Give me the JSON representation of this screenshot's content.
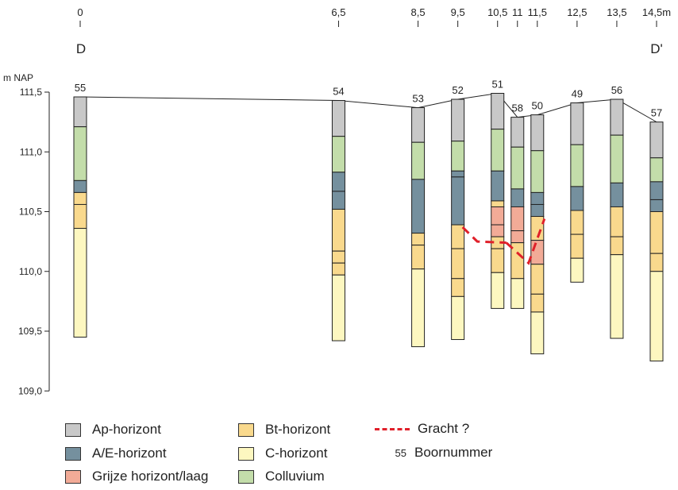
{
  "section": {
    "start_label": "D",
    "end_label": "D'",
    "y_axis_unit": "m NAP",
    "distance_ticks": [
      {
        "value": 0,
        "label": "0"
      },
      {
        "value": 6.5,
        "label": "6,5"
      },
      {
        "value": 8.5,
        "label": "8,5"
      },
      {
        "value": 9.5,
        "label": "9,5"
      },
      {
        "value": 10.5,
        "label": "10,5"
      },
      {
        "value": 11,
        "label": "11"
      },
      {
        "value": 11.5,
        "label": "11,5"
      },
      {
        "value": 12.5,
        "label": "12,5"
      },
      {
        "value": 13.5,
        "label": "13,5"
      },
      {
        "value": 14.5,
        "label": "14,5m"
      }
    ],
    "elevation_ticks": [
      {
        "value": 111.5,
        "label": "111,5"
      },
      {
        "value": 111.0,
        "label": "111,0"
      },
      {
        "value": 110.5,
        "label": "110,5"
      },
      {
        "value": 110.0,
        "label": "110,0"
      },
      {
        "value": 109.5,
        "label": "109,5"
      },
      {
        "value": 109.0,
        "label": "109,0"
      }
    ]
  },
  "colors": {
    "Ap": "#c8c8c8",
    "AE": "#75909e",
    "grijs": "#f2ab97",
    "Bt": "#f9d98d",
    "C": "#fdf7c0",
    "colluvium": "#c3ddaa",
    "gracht": "#e0202a"
  },
  "borings": [
    {
      "label": "55",
      "x": 0,
      "top": 111.46,
      "bottom": 109.45,
      "layers": [
        {
          "t": "Ap",
          "b": 111.21
        },
        {
          "t": "colluvium",
          "b": 110.76
        },
        {
          "t": "AE",
          "b": 110.66
        },
        {
          "t": "Bt",
          "b": 110.56
        },
        {
          "t": "Bt",
          "b": 110.36
        },
        {
          "t": "C",
          "b": 109.45
        }
      ]
    },
    {
      "label": "54",
      "x": 6.5,
      "top": 111.43,
      "bottom": 109.42,
      "layers": [
        {
          "t": "Ap",
          "b": 111.13
        },
        {
          "t": "colluvium",
          "b": 110.83
        },
        {
          "t": "AE",
          "b": 110.67
        },
        {
          "t": "AE",
          "b": 110.52
        },
        {
          "t": "Bt",
          "b": 110.17
        },
        {
          "t": "Bt",
          "b": 110.07
        },
        {
          "t": "Bt",
          "b": 109.97
        },
        {
          "t": "C",
          "b": 109.42
        }
      ]
    },
    {
      "label": "53",
      "x": 8.5,
      "top": 111.37,
      "bottom": 109.37,
      "layers": [
        {
          "t": "Ap",
          "b": 111.08
        },
        {
          "t": "colluvium",
          "b": 110.77
        },
        {
          "t": "AE",
          "b": 110.32
        },
        {
          "t": "Bt",
          "b": 110.22
        },
        {
          "t": "Bt",
          "b": 110.02
        },
        {
          "t": "C",
          "b": 109.37
        }
      ]
    },
    {
      "label": "52",
      "x": 9.5,
      "top": 111.44,
      "bottom": 109.43,
      "layers": [
        {
          "t": "Ap",
          "b": 111.09
        },
        {
          "t": "colluvium",
          "b": 110.84
        },
        {
          "t": "AE",
          "b": 110.79
        },
        {
          "t": "AE",
          "b": 110.39
        },
        {
          "t": "Bt",
          "b": 110.19
        },
        {
          "t": "Bt",
          "b": 109.94
        },
        {
          "t": "Bt",
          "b": 109.79
        },
        {
          "t": "C",
          "b": 109.43
        }
      ]
    },
    {
      "label": "51",
      "x": 10.5,
      "top": 111.49,
      "bottom": 109.69,
      "layers": [
        {
          "t": "Ap",
          "b": 111.19
        },
        {
          "t": "colluvium",
          "b": 110.84
        },
        {
          "t": "AE",
          "b": 110.59
        },
        {
          "t": "Bt",
          "b": 110.54
        },
        {
          "t": "grijs",
          "b": 110.39
        },
        {
          "t": "grijs",
          "b": 110.29
        },
        {
          "t": "Bt",
          "b": 110.19
        },
        {
          "t": "Bt",
          "b": 109.99
        },
        {
          "t": "C",
          "b": 109.69
        }
      ]
    },
    {
      "label": "58",
      "x": 11,
      "top": 111.29,
      "bottom": 109.69,
      "layers": [
        {
          "t": "Ap",
          "b": 111.04
        },
        {
          "t": "colluvium",
          "b": 110.69
        },
        {
          "t": "AE",
          "b": 110.54
        },
        {
          "t": "grijs",
          "b": 110.34
        },
        {
          "t": "grijs",
          "b": 110.24
        },
        {
          "t": "Bt",
          "b": 109.94
        },
        {
          "t": "C",
          "b": 109.69
        }
      ]
    },
    {
      "label": "50",
      "x": 11.5,
      "top": 111.31,
      "bottom": 109.31,
      "layers": [
        {
          "t": "Ap",
          "b": 111.01
        },
        {
          "t": "colluvium",
          "b": 110.66
        },
        {
          "t": "AE",
          "b": 110.56
        },
        {
          "t": "AE",
          "b": 110.46
        },
        {
          "t": "Bt",
          "b": 110.26
        },
        {
          "t": "grijs",
          "b": 110.06
        },
        {
          "t": "Bt",
          "b": 109.81
        },
        {
          "t": "Bt",
          "b": 109.66
        },
        {
          "t": "C",
          "b": 109.31
        }
      ]
    },
    {
      "label": "49",
      "x": 12.5,
      "top": 111.41,
      "bottom": 109.91,
      "layers": [
        {
          "t": "Ap",
          "b": 111.06
        },
        {
          "t": "colluvium",
          "b": 110.71
        },
        {
          "t": "AE",
          "b": 110.51
        },
        {
          "t": "Bt",
          "b": 110.31
        },
        {
          "t": "Bt",
          "b": 110.11
        },
        {
          "t": "C",
          "b": 109.91
        }
      ]
    },
    {
      "label": "56",
      "x": 13.5,
      "top": 111.44,
      "bottom": 109.44,
      "layers": [
        {
          "t": "Ap",
          "b": 111.14
        },
        {
          "t": "colluvium",
          "b": 110.74
        },
        {
          "t": "AE",
          "b": 110.54
        },
        {
          "t": "Bt",
          "b": 110.29
        },
        {
          "t": "Bt",
          "b": 110.14
        },
        {
          "t": "C",
          "b": 109.44
        }
      ]
    },
    {
      "label": "57",
      "x": 14.5,
      "top": 111.25,
      "bottom": 109.25,
      "layers": [
        {
          "t": "Ap",
          "b": 110.95
        },
        {
          "t": "colluvium",
          "b": 110.75
        },
        {
          "t": "AE",
          "b": 110.6
        },
        {
          "t": "AE",
          "b": 110.5
        },
        {
          "t": "Bt",
          "b": 110.15
        },
        {
          "t": "Bt",
          "b": 110.0
        },
        {
          "t": "C",
          "b": 109.25
        }
      ]
    }
  ],
  "gracht_line": [
    [
      9.62,
      110.37
    ],
    [
      9.99,
      110.25
    ],
    [
      10.72,
      110.24
    ],
    [
      11.28,
      110.07
    ],
    [
      11.68,
      110.44
    ]
  ],
  "legend": {
    "ap": "Ap-horizont",
    "ae": "A/E-horizont",
    "grijs": "Grijze horizont/laag",
    "bt": "Bt-horizont",
    "c": "C-horizont",
    "colluvium": "Colluvium",
    "gracht": "Gracht ?",
    "boor_sample": "55",
    "boor": "Boornummer"
  }
}
